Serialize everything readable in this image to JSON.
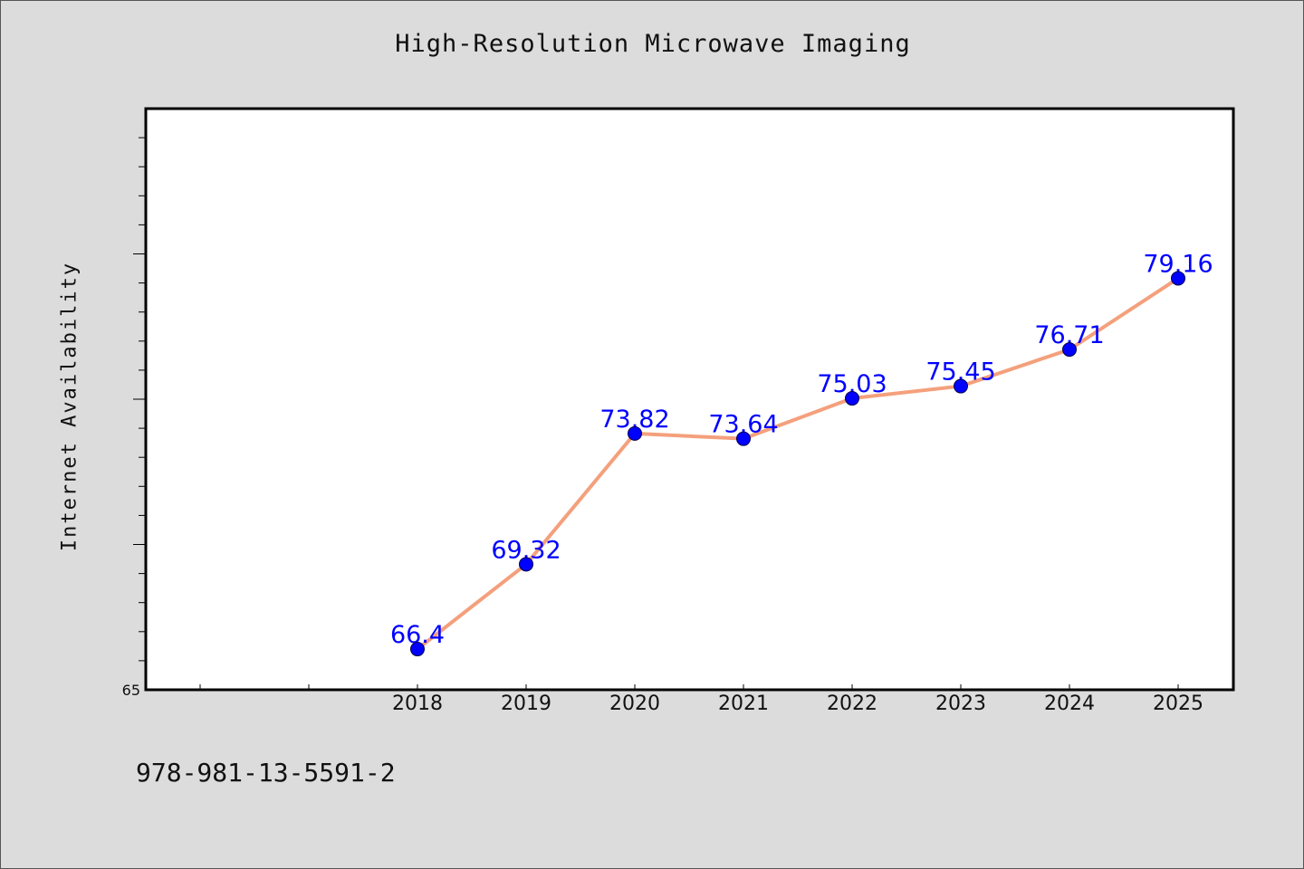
{
  "page": {
    "isbn": "978-981-13-5591-2"
  },
  "chart_data": {
    "type": "line",
    "title": "High-Resolution Microwave Imaging",
    "xlabel": "",
    "ylabel": "Internet Availability",
    "x": [
      "2018",
      "2019",
      "2020",
      "2021",
      "2022",
      "2023",
      "2024",
      "2025"
    ],
    "series": [
      {
        "values": [
          66.4,
          69.32,
          73.82,
          73.64,
          75.03,
          75.45,
          76.71,
          79.16
        ],
        "labels": [
          "66.4",
          "69.32",
          "73.82",
          "73.64",
          "75.03",
          "75.45",
          "76.71",
          "79.16"
        ]
      }
    ],
    "ylim": [
      65,
      85
    ],
    "y_tick_labels": [
      "65"
    ],
    "grid": false,
    "colors": {
      "line": "#f4a07c",
      "marker": "#0000ff",
      "marker_edge": "#00004d",
      "data_label": "#0000ff",
      "background": "#dcdcdc",
      "plot_background": "#ffffff"
    }
  }
}
